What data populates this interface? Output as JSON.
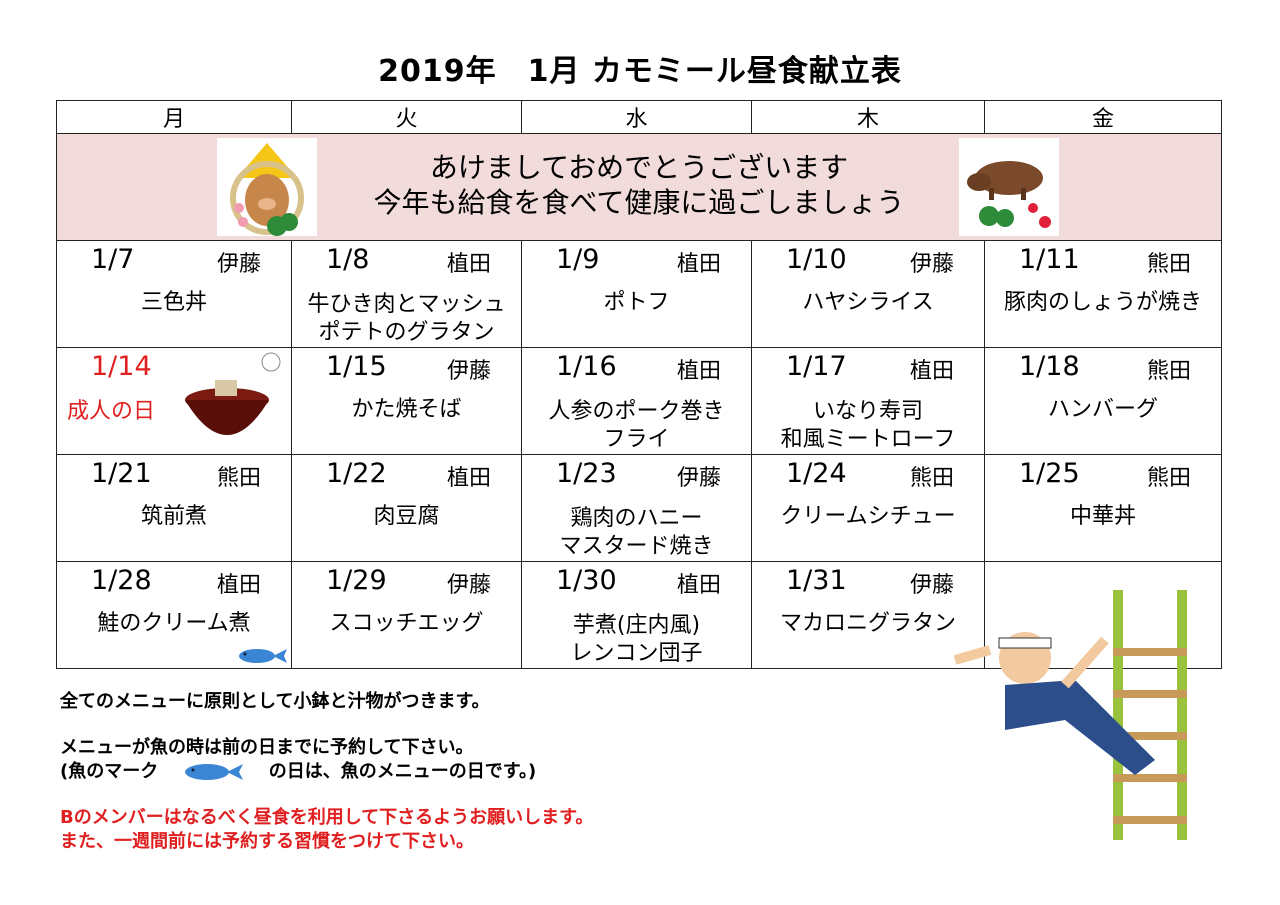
{
  "title": "2019年　1月 カモミール昼食献立表",
  "weekdays": [
    "月",
    "火",
    "水",
    "木",
    "金"
  ],
  "banner": {
    "line1": "あけましておめでとうございます",
    "line2": "今年も給食を食べて健康に過ごしましょう"
  },
  "weeks": [
    [
      {
        "date": "1/7",
        "staff": "伊藤",
        "menu": "三色丼"
      },
      {
        "date": "1/8",
        "staff": "植田",
        "menu": "牛ひき肉とマッシュ",
        "menu2": "ポテトのグラタン"
      },
      {
        "date": "1/9",
        "staff": "植田",
        "menu": "ポトフ"
      },
      {
        "date": "1/10",
        "staff": "伊藤",
        "menu": "ハヤシライス"
      },
      {
        "date": "1/11",
        "staff": "熊田",
        "menu": "豚肉のしょうが焼き"
      }
    ],
    [
      {
        "date": "1/14",
        "staff": "",
        "menu": "成人の日"
      },
      {
        "date": "1/15",
        "staff": "伊藤",
        "menu": "かた焼そば"
      },
      {
        "date": "1/16",
        "staff": "植田",
        "menu": "人参のポーク巻き",
        "menu2": "フライ"
      },
      {
        "date": "1/17",
        "staff": "植田",
        "menu": "いなり寿司",
        "menu2": "和風ミートローフ"
      },
      {
        "date": "1/18",
        "staff": "熊田",
        "menu": "ハンバーグ"
      }
    ],
    [
      {
        "date": "1/21",
        "staff": "熊田",
        "menu": "筑前煮"
      },
      {
        "date": "1/22",
        "staff": "植田",
        "menu": "肉豆腐"
      },
      {
        "date": "1/23",
        "staff": "伊藤",
        "menu": "鶏肉のハニー",
        "menu2": "マスタード焼き"
      },
      {
        "date": "1/24",
        "staff": "熊田",
        "menu": "クリームシチュー"
      },
      {
        "date": "1/25",
        "staff": "熊田",
        "menu": "中華丼"
      }
    ],
    [
      {
        "date": "1/28",
        "staff": "植田",
        "menu": "鮭のクリーム煮",
        "fish": true
      },
      {
        "date": "1/29",
        "staff": "伊藤",
        "menu": "スコッチエッグ"
      },
      {
        "date": "1/30",
        "staff": "植田",
        "menu": "芋煮(庄内風)",
        "menu2": "レンコン団子"
      },
      {
        "date": "1/31",
        "staff": "伊藤",
        "menu": "マカロニグラタン"
      },
      {
        "date": "",
        "staff": "",
        "menu": ""
      }
    ]
  ],
  "notes": {
    "line1": "全てのメニューに原則として小鉢と汁物がつきます。",
    "line2": "メニューが魚の時は前の日までに予約して下さい。",
    "line3a": "(魚のマーク",
    "line3b": "の日は、魚のメニューの日です。)",
    "line4": "Bのメンバーはなるべく昼食を利用して下さるようお願いします。",
    "line5": "また、一週間前には予約する習慣をつけて下さい。"
  },
  "colors": {
    "banner": "#f2dcdb",
    "holiday": "#e02020",
    "fish": "#3a86d4"
  }
}
